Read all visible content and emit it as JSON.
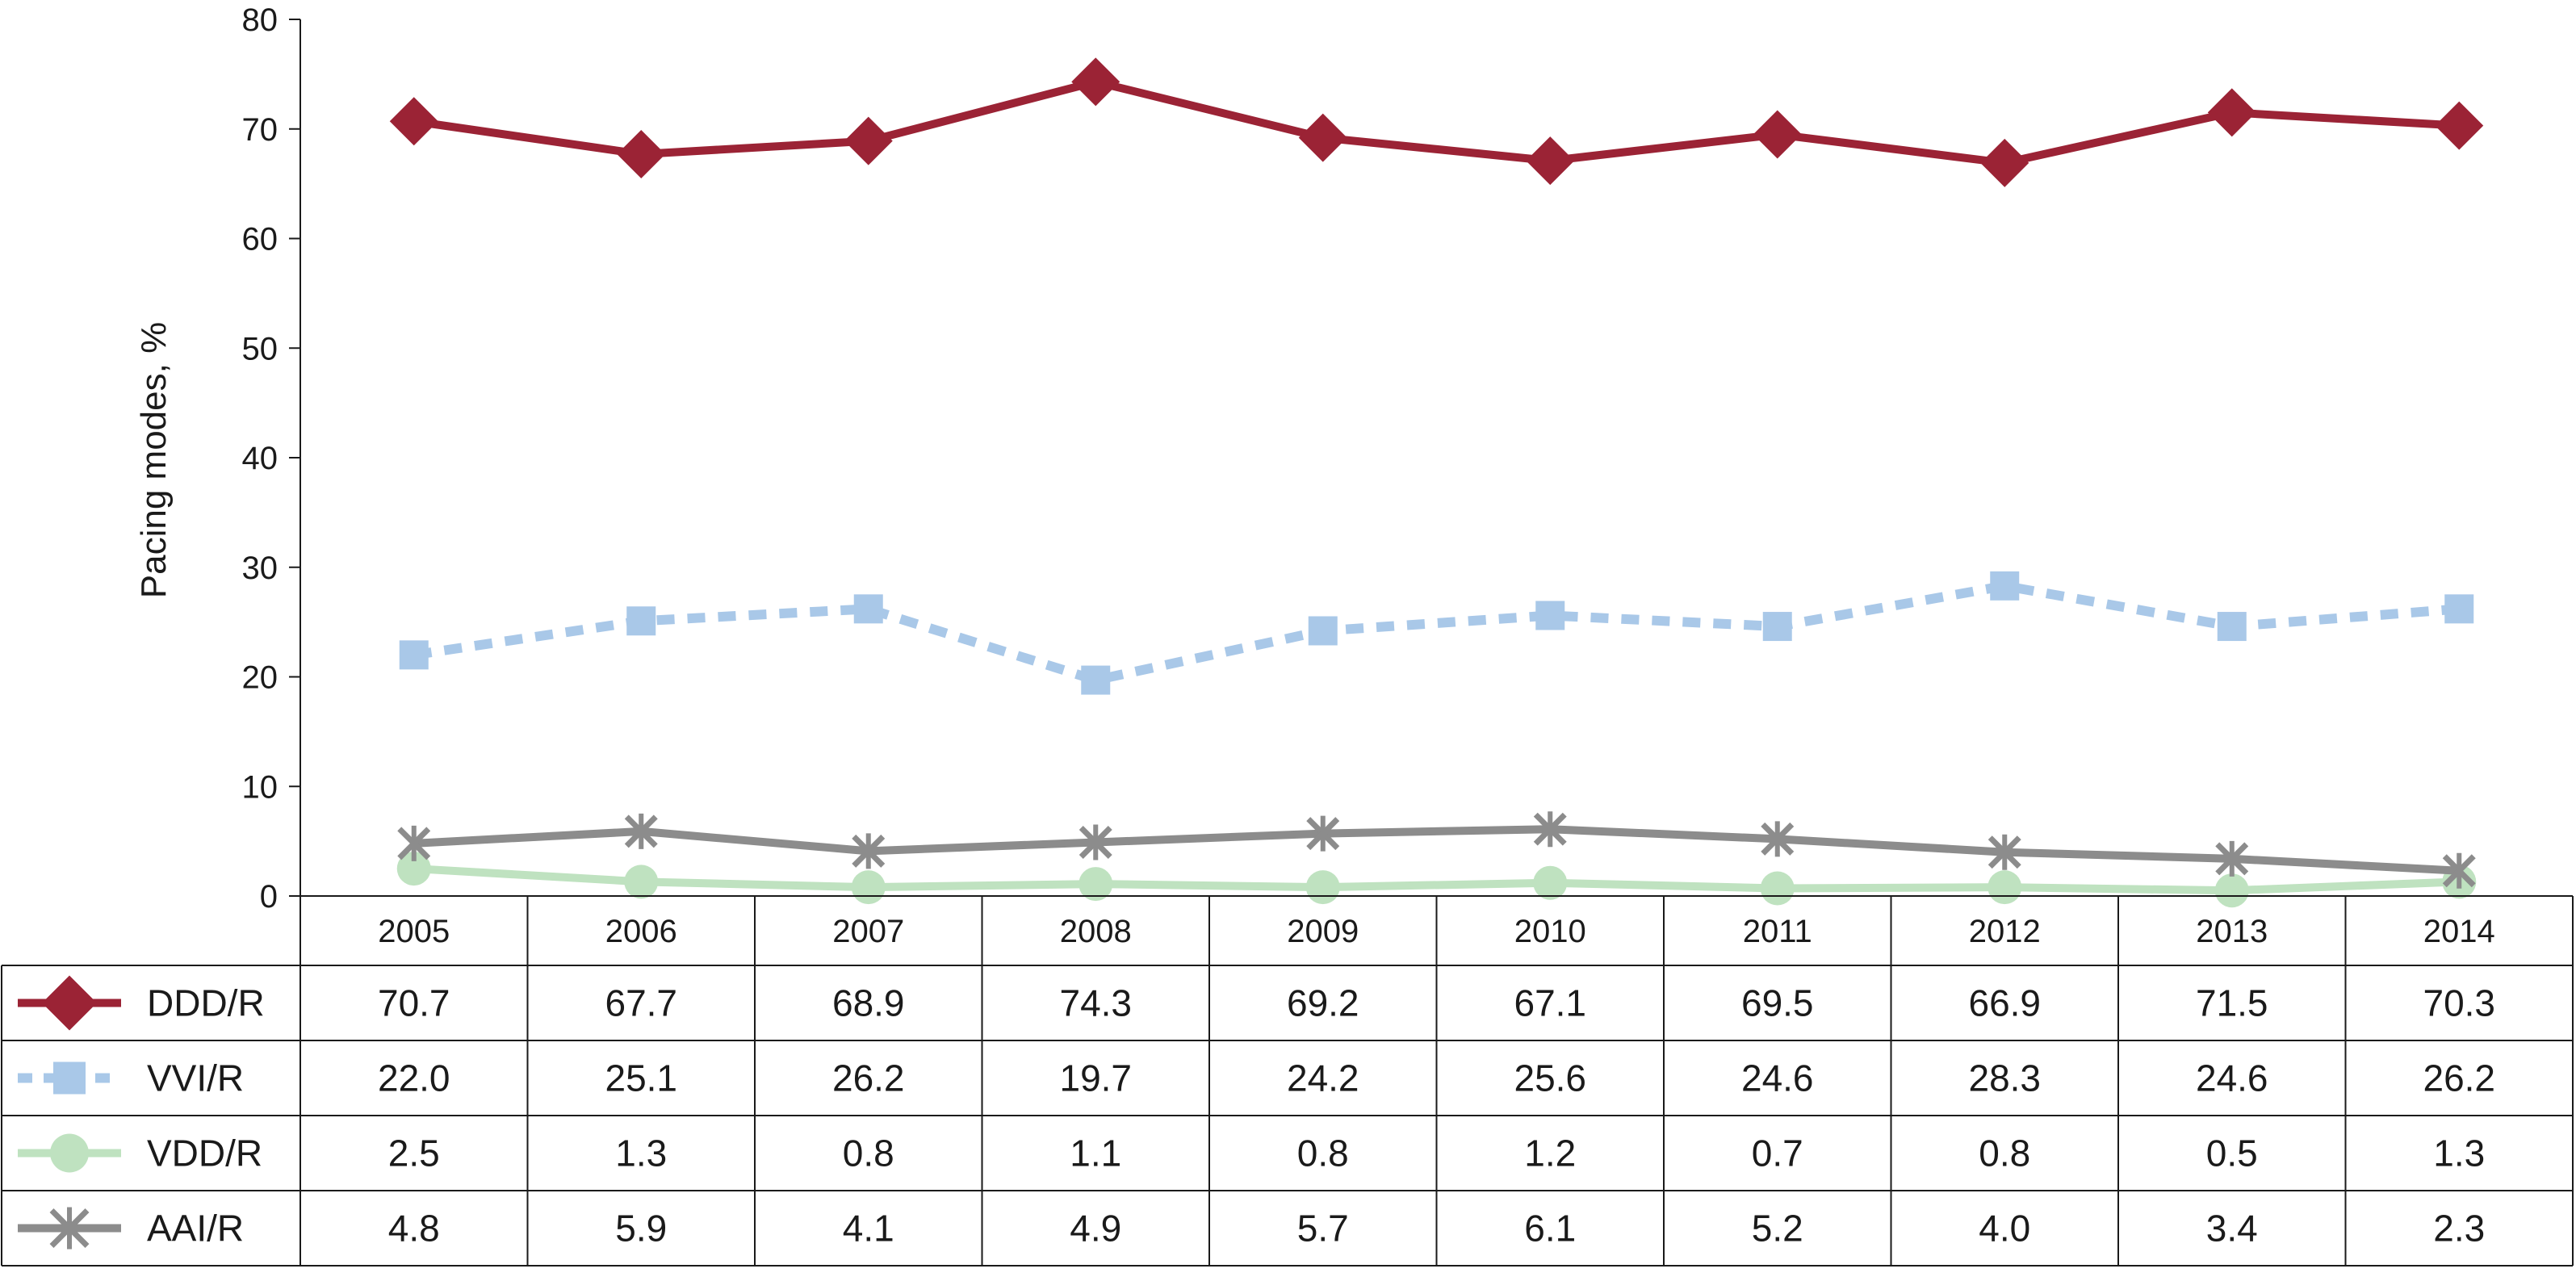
{
  "chart_data": {
    "type": "line",
    "ylabel": "Pacing modes, %",
    "xlabel": "",
    "ylim": [
      0,
      80
    ],
    "yticks": [
      0,
      10,
      20,
      30,
      40,
      50,
      60,
      70,
      80
    ],
    "categories": [
      "2005",
      "2006",
      "2007",
      "2008",
      "2009",
      "2010",
      "2011",
      "2012",
      "2013",
      "2014"
    ],
    "grid": false,
    "legend_placement": "data-table-left",
    "series": [
      {
        "name": "DDD/R",
        "color": "#9b2335",
        "marker": "diamond",
        "line": "solid",
        "values": [
          70.7,
          67.7,
          68.9,
          74.3,
          69.2,
          67.1,
          69.5,
          66.9,
          71.5,
          70.3
        ],
        "labels": [
          "70.7",
          "67.7",
          "68.9",
          "74.3",
          "69.2",
          "67.1",
          "69.5",
          "66.9",
          "71.5",
          "70.3"
        ]
      },
      {
        "name": "VVI/R",
        "color": "#a9c8e8",
        "marker": "square",
        "line": "dotted",
        "values": [
          22.0,
          25.1,
          26.2,
          19.7,
          24.2,
          25.6,
          24.6,
          28.3,
          24.6,
          26.2
        ],
        "labels": [
          "22.0",
          "25.1",
          "26.2",
          "19.7",
          "24.2",
          "25.6",
          "24.6",
          "28.3",
          "24.6",
          "26.2"
        ]
      },
      {
        "name": "VDD/R",
        "color": "#bfe2c0",
        "marker": "circle",
        "line": "solid",
        "values": [
          2.5,
          1.3,
          0.8,
          1.1,
          0.8,
          1.2,
          0.7,
          0.8,
          0.5,
          1.3
        ],
        "labels": [
          "2.5",
          "1.3",
          "0.8",
          "1.1",
          "0.8",
          "1.2",
          "0.7",
          "0.8",
          "0.5",
          "1.3"
        ]
      },
      {
        "name": "AAI/R",
        "color": "#8c8c8c",
        "marker": "x",
        "line": "solid",
        "values": [
          4.8,
          5.9,
          4.1,
          4.9,
          5.7,
          6.1,
          5.2,
          4.0,
          3.4,
          2.3
        ],
        "labels": [
          "4.8",
          "5.9",
          "4.1",
          "4.9",
          "5.7",
          "6.1",
          "5.2",
          "4.0",
          "3.4",
          "2.3"
        ]
      }
    ]
  }
}
